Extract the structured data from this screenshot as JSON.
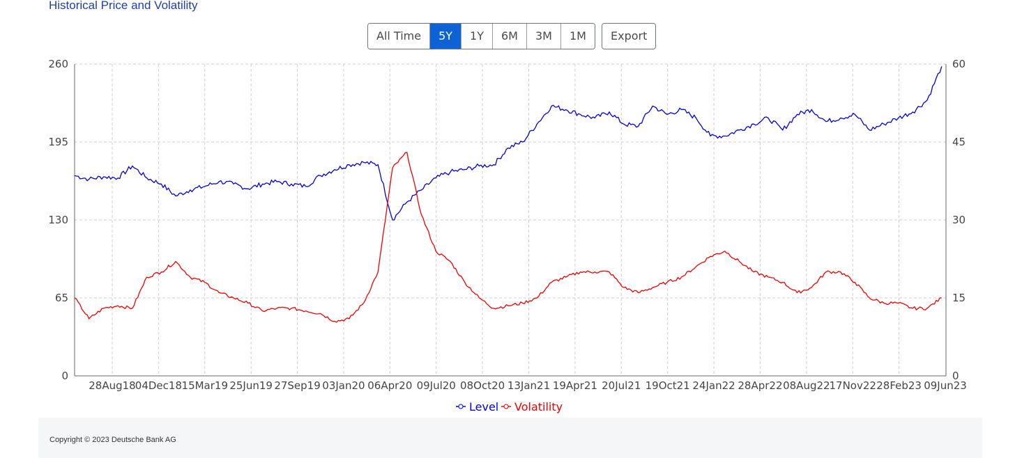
{
  "header": {
    "title": "Historical Price and Volatility"
  },
  "range_buttons": [
    {
      "label": "All Time",
      "active": false
    },
    {
      "label": "5Y",
      "active": true
    },
    {
      "label": "1Y",
      "active": false
    },
    {
      "label": "6M",
      "active": false
    },
    {
      "label": "3M",
      "active": false
    },
    {
      "label": "1M",
      "active": false
    }
  ],
  "export_label": "Export",
  "chart_data": {
    "type": "line",
    "x_tick_labels": [
      "28Aug18",
      "04Dec18",
      "15Mar19",
      "25Jun19",
      "27Sep19",
      "03Jan20",
      "06Apr20",
      "09Jul20",
      "08Oct20",
      "13Jan21",
      "19Apr21",
      "20Jul21",
      "19Oct21",
      "24Jan22",
      "28Apr22",
      "08Aug22",
      "17Nov22",
      "28Feb23",
      "09Jun23"
    ],
    "x_range": [
      "2018-06",
      "2023-06"
    ],
    "y_left": {
      "ticks": [
        "0",
        "65",
        "130",
        "195",
        "260"
      ],
      "ylim": [
        0,
        260
      ]
    },
    "y_right": {
      "ticks": [
        "0",
        "15",
        "30",
        "45",
        "60"
      ],
      "ylim": [
        0,
        60
      ]
    },
    "grid": true,
    "legend": {
      "placement": "bottom-center",
      "entries": [
        "Level",
        "Volatility"
      ]
    },
    "colors": {
      "Level": "#0000dd",
      "Volatility": "#ee0000"
    },
    "series": [
      {
        "name": "Level",
        "axis": "left",
        "x": [
          "2018-06",
          "2018-07",
          "2018-08",
          "2018-09",
          "2018-10",
          "2018-11",
          "2018-12",
          "2019-01",
          "2019-02",
          "2019-03",
          "2019-04",
          "2019-05",
          "2019-06",
          "2019-07",
          "2019-08",
          "2019-09",
          "2019-10",
          "2019-11",
          "2019-12",
          "2020-01",
          "2020-02",
          "2020-03",
          "2020-04",
          "2020-05",
          "2020-06",
          "2020-07",
          "2020-08",
          "2020-09",
          "2020-10",
          "2020-11",
          "2020-12",
          "2021-01",
          "2021-02",
          "2021-03",
          "2021-04",
          "2021-05",
          "2021-06",
          "2021-07",
          "2021-08",
          "2021-09",
          "2021-10",
          "2021-11",
          "2021-12",
          "2022-01",
          "2022-02",
          "2022-03",
          "2022-04",
          "2022-05",
          "2022-06",
          "2022-07",
          "2022-08",
          "2022-09",
          "2022-10",
          "2022-11",
          "2022-12",
          "2023-01",
          "2023-02",
          "2023-03",
          "2023-04",
          "2023-05",
          "2023-06"
        ],
        "values": [
          167,
          164,
          166,
          165,
          175,
          165,
          160,
          150,
          155,
          158,
          162,
          160,
          156,
          160,
          162,
          160,
          158,
          167,
          172,
          176,
          178,
          176,
          130,
          145,
          155,
          165,
          170,
          172,
          175,
          176,
          190,
          195,
          210,
          225,
          222,
          218,
          215,
          220,
          210,
          208,
          225,
          218,
          222,
          215,
          200,
          200,
          205,
          210,
          215,
          205,
          218,
          222,
          212,
          215,
          218,
          205,
          210,
          215,
          220,
          230,
          258
        ],
        "label_positions_hint": ""
      },
      {
        "name": "Volatility",
        "axis": "right",
        "x": [
          "2018-06",
          "2018-07",
          "2018-08",
          "2018-09",
          "2018-10",
          "2018-11",
          "2018-12",
          "2019-01",
          "2019-02",
          "2019-03",
          "2019-04",
          "2019-05",
          "2019-06",
          "2019-07",
          "2019-08",
          "2019-09",
          "2019-10",
          "2019-11",
          "2019-12",
          "2020-01",
          "2020-02",
          "2020-03",
          "2020-04",
          "2020-05",
          "2020-06",
          "2020-07",
          "2020-08",
          "2020-09",
          "2020-10",
          "2020-11",
          "2020-12",
          "2021-01",
          "2021-02",
          "2021-03",
          "2021-04",
          "2021-05",
          "2021-06",
          "2021-07",
          "2021-08",
          "2021-09",
          "2021-10",
          "2021-11",
          "2021-12",
          "2022-01",
          "2022-02",
          "2022-03",
          "2022-04",
          "2022-05",
          "2022-06",
          "2022-07",
          "2022-08",
          "2022-09",
          "2022-10",
          "2022-11",
          "2022-12",
          "2023-01",
          "2023-02",
          "2023-03",
          "2023-04",
          "2023-05",
          "2023-06"
        ],
        "values": [
          15,
          11,
          13,
          13.5,
          13,
          19,
          20,
          22,
          19,
          18,
          16,
          15,
          14,
          12.5,
          13,
          13,
          12.5,
          12,
          10.5,
          11,
          14,
          20,
          40,
          43,
          31,
          24,
          22,
          18,
          15,
          13,
          13.5,
          14,
          15,
          18,
          19,
          20,
          20,
          20,
          17,
          16,
          17,
          18,
          19,
          21,
          23,
          24,
          22,
          20,
          19,
          18,
          16,
          17,
          20,
          20,
          18,
          15,
          14,
          14,
          13,
          13,
          15
        ]
      }
    ]
  },
  "legend": {
    "level_label": "Level",
    "volatility_label": "Volatility"
  },
  "footer": {
    "copyright": "Copyright © 2023 Deutsche Bank AG"
  }
}
